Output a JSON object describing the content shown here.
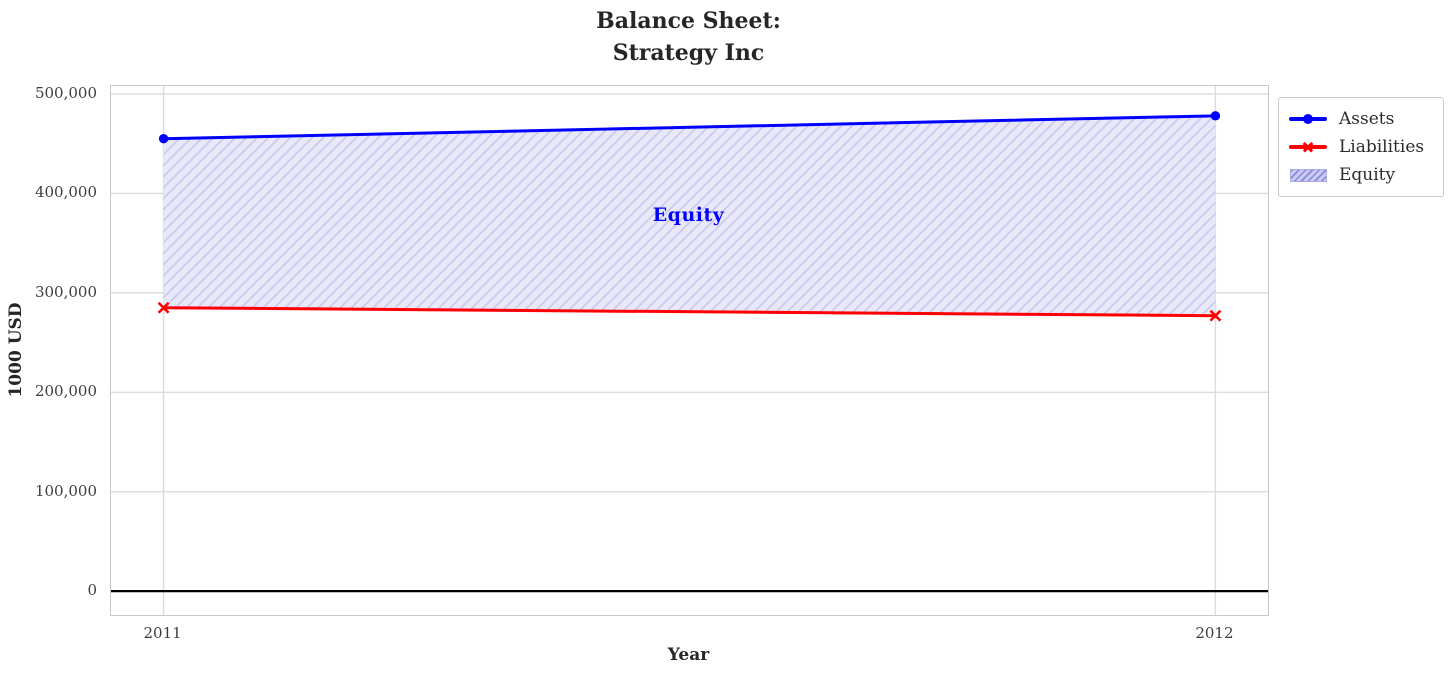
{
  "title": {
    "line1": "Balance Sheet:",
    "line2": "Strategy Inc"
  },
  "chart_data": {
    "type": "line",
    "title": "Balance Sheet:\nStrategy Inc",
    "xlabel": "Year",
    "ylabel": "1000 USD",
    "x": [
      2011,
      2012
    ],
    "xticks": [
      2011,
      2012
    ],
    "xtick_labels": [
      "2011",
      "2012"
    ],
    "yticks": [
      0,
      100000,
      200000,
      300000,
      400000,
      500000
    ],
    "ytick_labels": [
      "0",
      "100,000",
      "200,000",
      "300,000",
      "400,000",
      "500,000"
    ],
    "xlim": [
      2010.95,
      2012.05
    ],
    "ylim": [
      -24000,
      508000
    ],
    "grid": true,
    "zero_line": true,
    "series": [
      {
        "name": "Assets",
        "values": [
          455000,
          478000
        ],
        "color": "#0000ff",
        "marker": "circle",
        "line_width": 3
      },
      {
        "name": "Liabilities",
        "values": [
          285000,
          277000
        ],
        "color": "#ff0000",
        "marker": "x",
        "line_width": 3
      }
    ],
    "fill_between": {
      "label": "Equity",
      "upper_series": "Assets",
      "lower_series": "Liabilities",
      "values": [
        170000,
        201000
      ],
      "fill_color": "#e8e8f8",
      "hatch_color": "#c9c9ef",
      "hatch_style": "//",
      "legend_swatch_fill": "#c9cbf3",
      "legend_swatch_hatch": "#8688dc"
    },
    "annotation": {
      "text": "Equity",
      "x": 2011.5,
      "y": 375000,
      "color": "#0000ff"
    },
    "legend": {
      "position": "outside upper right",
      "entries": [
        "Assets",
        "Liabilities",
        "Equity"
      ]
    },
    "colors": {
      "grid": "#dcdcdc",
      "spine": "#c8c8c8",
      "zero_line": "#000000",
      "tick_text": "#3d3d3d",
      "title_text": "#262626"
    }
  }
}
